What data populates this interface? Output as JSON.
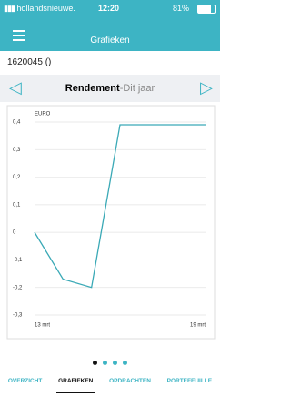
{
  "status_bar": {
    "carrier": "hollandsnieuwe.",
    "time": "12:20",
    "battery": "81%"
  },
  "header": {
    "title": "Grafieken"
  },
  "account": {
    "label": "1620045 ()"
  },
  "selector": {
    "title": "Rendement",
    "period": "-Dit jaar"
  },
  "chart": {
    "type": "line",
    "y_label": "EURO",
    "categories": [
      "13 mrt",
      null,
      null,
      null,
      null,
      null,
      "19 mrt"
    ],
    "values": [
      0,
      -0.17,
      -0.2,
      0.39,
      0.39,
      0.39,
      0.39
    ],
    "color": "#3aa9b6",
    "ylim": [
      -0.3,
      0.4
    ],
    "yticks": [
      {
        "value": 0.4,
        "label": "0,4"
      },
      {
        "value": 0.3,
        "label": "0,3"
      },
      {
        "value": 0.2,
        "label": "0,2"
      },
      {
        "value": 0.1,
        "label": "0,1"
      },
      0,
      {
        "value": -0.1,
        "label": "-0,1"
      },
      {
        "value": -0.2,
        "label": "-0,2"
      },
      {
        "value": -0.3,
        "label": "-0,3"
      }
    ],
    "grid": true
  },
  "tabs": [
    "OVERZICHT",
    "GRAFIEKEN",
    "OPDRACHTEN",
    "PORTEFEUILLE"
  ]
}
